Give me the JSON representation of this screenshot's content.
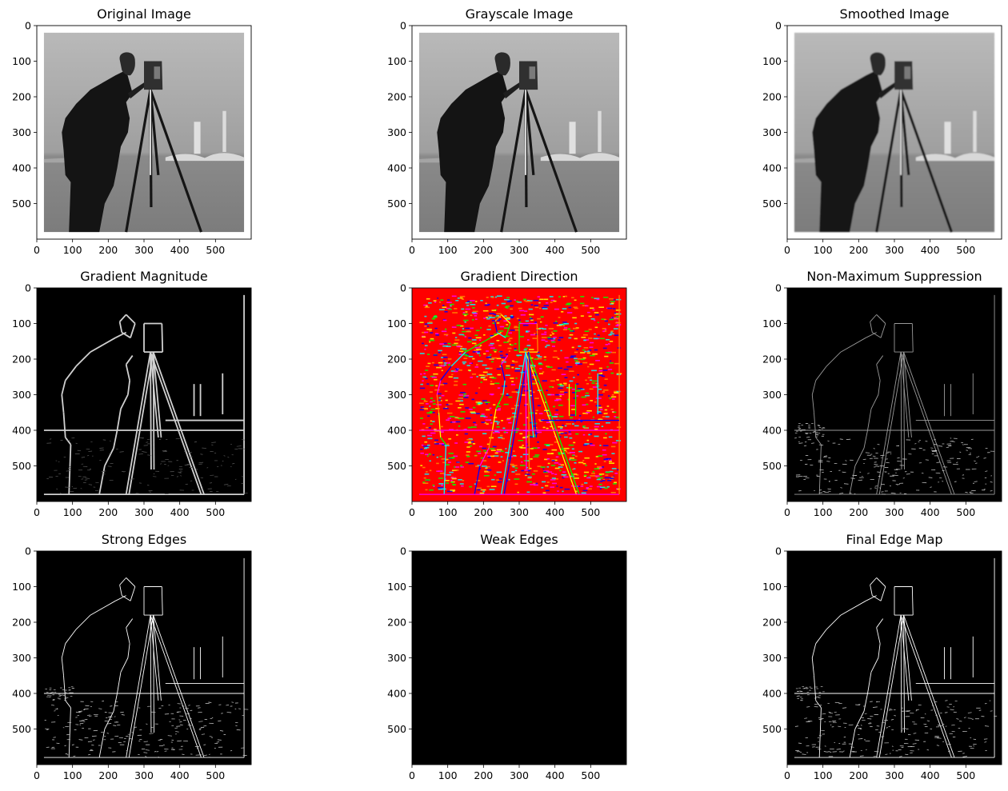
{
  "figure": {
    "panels": [
      {
        "id": "original",
        "title": "Original Image",
        "style": "photo"
      },
      {
        "id": "grayscale",
        "title": "Grayscale Image",
        "style": "photo"
      },
      {
        "id": "smoothed",
        "title": "Smoothed Image",
        "style": "photo-blur"
      },
      {
        "id": "gradmag",
        "title": "Gradient Magnitude",
        "style": "edges-glow"
      },
      {
        "id": "graddir",
        "title": "Gradient Direction",
        "style": "direction"
      },
      {
        "id": "nms",
        "title": "Non-Maximum Suppression",
        "style": "edges-thin"
      },
      {
        "id": "strong",
        "title": "Strong Edges",
        "style": "edges-strong"
      },
      {
        "id": "weak",
        "title": "Weak Edges",
        "style": "black"
      },
      {
        "id": "final",
        "title": "Final Edge Map",
        "style": "edges-strong"
      }
    ],
    "axes": {
      "x_ticks": [
        0,
        100,
        200,
        300,
        400,
        500
      ],
      "y_ticks": [
        0,
        100,
        200,
        300,
        400,
        500
      ],
      "xlim": [
        0,
        600
      ],
      "ylim": [
        600,
        0
      ]
    },
    "colors": {
      "direction_base": "#ff0000",
      "direction_noise": [
        "#ffff00",
        "#00ff00",
        "#00ffff",
        "#0000ff",
        "#ff00ff",
        "#ff8800"
      ]
    }
  }
}
